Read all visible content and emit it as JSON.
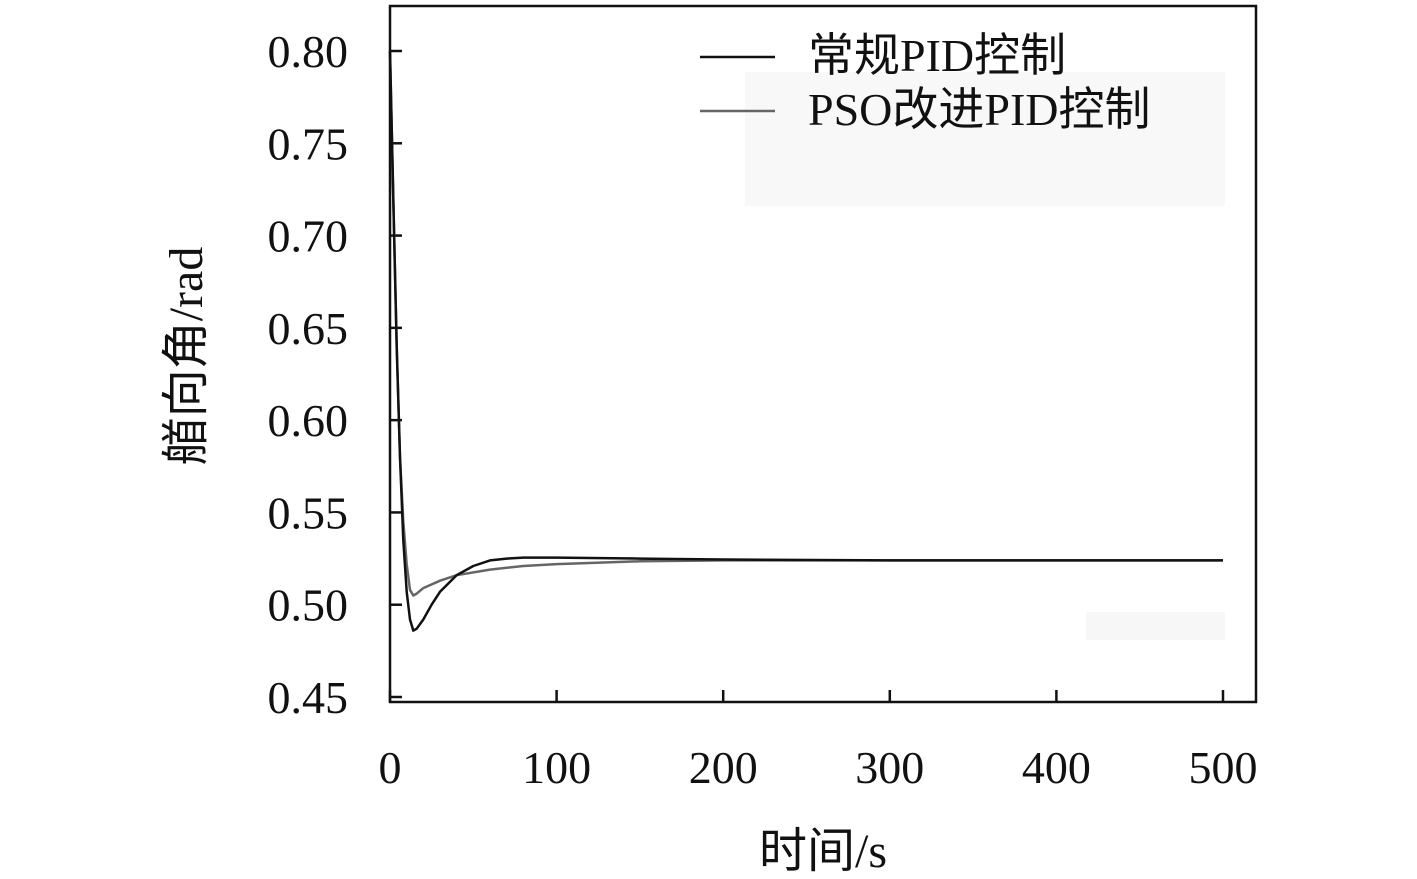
{
  "chart_data": {
    "type": "line",
    "xlabel": "时间/s",
    "ylabel": "艏向角/rad",
    "xlim": [
      0,
      500
    ],
    "ylim": [
      0.45,
      0.82
    ],
    "x_ticks": [
      "0",
      "100",
      "200",
      "300",
      "400",
      "500"
    ],
    "y_ticks": [
      "0.45",
      "0.50",
      "0.55",
      "0.60",
      "0.65",
      "0.70",
      "0.75",
      "0.80"
    ],
    "grid": false,
    "legend_position": "top-right",
    "series": [
      {
        "name": "常规PID控制",
        "color": "#111111",
        "points": [
          [
            0,
            0.8
          ],
          [
            2,
            0.72
          ],
          [
            4,
            0.64
          ],
          [
            6,
            0.58
          ],
          [
            8,
            0.535
          ],
          [
            10,
            0.507
          ],
          [
            12,
            0.492
          ],
          [
            14,
            0.486
          ],
          [
            16,
            0.487
          ],
          [
            20,
            0.492
          ],
          [
            25,
            0.5
          ],
          [
            30,
            0.507
          ],
          [
            40,
            0.516
          ],
          [
            50,
            0.521
          ],
          [
            60,
            0.524
          ],
          [
            70,
            0.525
          ],
          [
            80,
            0.5255
          ],
          [
            100,
            0.5255
          ],
          [
            150,
            0.525
          ],
          [
            200,
            0.5245
          ],
          [
            300,
            0.524
          ],
          [
            400,
            0.524
          ],
          [
            500,
            0.524
          ]
        ]
      },
      {
        "name": "PSO改进PID控制",
        "color": "#666666",
        "points": [
          [
            0,
            0.8
          ],
          [
            2,
            0.72
          ],
          [
            4,
            0.64
          ],
          [
            6,
            0.58
          ],
          [
            8,
            0.545
          ],
          [
            10,
            0.522
          ],
          [
            12,
            0.508
          ],
          [
            14,
            0.505
          ],
          [
            16,
            0.506
          ],
          [
            20,
            0.509
          ],
          [
            30,
            0.513
          ],
          [
            40,
            0.516
          ],
          [
            60,
            0.519
          ],
          [
            80,
            0.521
          ],
          [
            100,
            0.522
          ],
          [
            150,
            0.5235
          ],
          [
            200,
            0.524
          ],
          [
            300,
            0.524
          ],
          [
            400,
            0.524
          ],
          [
            500,
            0.524
          ]
        ]
      }
    ]
  }
}
